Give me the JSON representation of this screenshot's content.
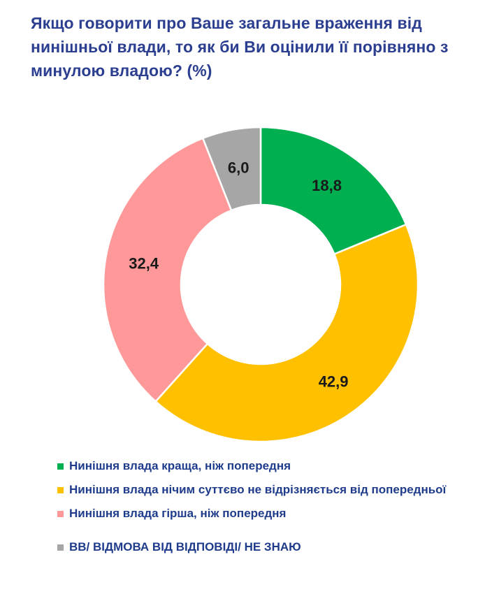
{
  "title": "Якщо говорити про Ваше загальне враження від нинішньої влади, то як би Ви оцінили її порівняно з минулою владою? (%)",
  "chart_data": {
    "type": "donut",
    "title": "Якщо говорити про Ваше загальне враження від нинішньої влади, то як би Ви оцінили її порівняно з минулою владою? (%)",
    "categories": [
      "Нинішня влада краща, ніж попередня",
      "Нинішня влада нічим суттєво не відрізняється від попередньої",
      "Нинішня влада гірша, ніж попередня",
      "ВВ/ ВІДМОВА ВІД ВІДПОВІДІ/ НЕ ЗНАЮ"
    ],
    "values": [
      18.8,
      42.9,
      32.4,
      6.0
    ],
    "value_labels": [
      "18,8",
      "42,9",
      "32,4",
      "6,0"
    ],
    "colors": [
      "#00b050",
      "#ffc000",
      "#ff9999",
      "#a6a6a6"
    ],
    "legend_position": "bottom"
  },
  "legend": {
    "items": [
      {
        "label": "Нинішня влада краща, ніж попередня",
        "color": "#00b050"
      },
      {
        "label": "Нинішня влада нічим суттєво не відрізняється від попередньої",
        "color": "#ffc000"
      },
      {
        "label": "Нинішня влада гірша, ніж попередня",
        "color": "#ff9999"
      },
      {
        "label": "ВВ/ ВІДМОВА ВІД ВІДПОВІДІ/ НЕ ЗНАЮ",
        "color": "#a6a6a6"
      }
    ]
  }
}
